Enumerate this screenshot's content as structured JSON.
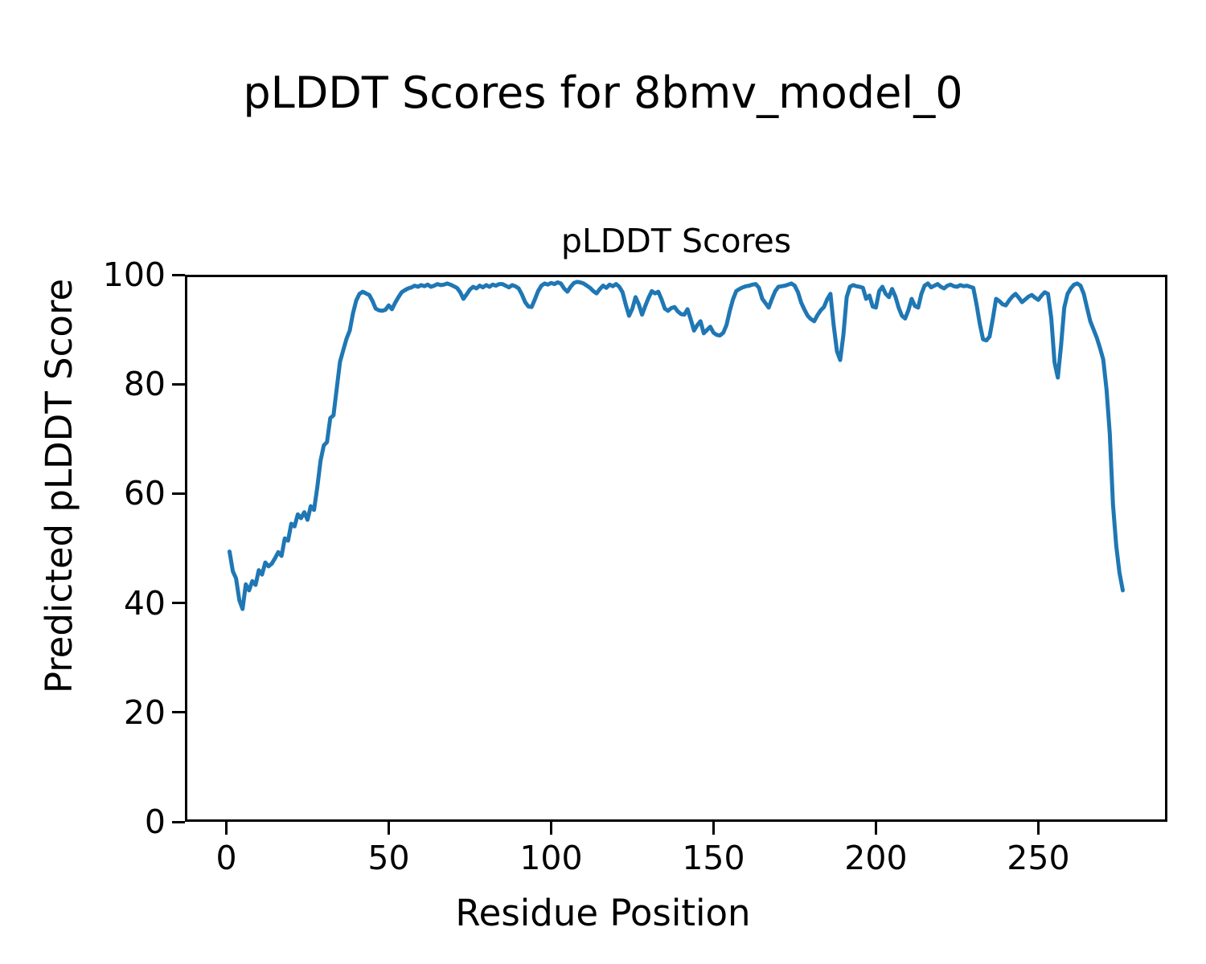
{
  "chart_data": {
    "type": "line",
    "figure_title": "pLDDT Scores for 8bmv_model_0",
    "axes_title": "pLDDT Scores",
    "xlabel": "Residue Position",
    "ylabel": "Predicted pLDDT Score",
    "legend": null,
    "grid": false,
    "line_color": "#1f77b4",
    "spine_color": "#000000",
    "background_color": "#ffffff",
    "xlim": [
      -12.75,
      289.75
    ],
    "ylim": [
      0,
      100
    ],
    "x_ticks": [
      0,
      50,
      100,
      150,
      200,
      250
    ],
    "y_ticks": [
      0,
      20,
      40,
      60,
      80,
      100
    ],
    "x_start": 1,
    "x_step": 1,
    "y": [
      49.4,
      45.8,
      44.5,
      40.5,
      38.9,
      43.4,
      42.3,
      44.0,
      43.3,
      46.0,
      45.2,
      47.4,
      46.7,
      47.2,
      48.2,
      49.3,
      48.6,
      51.8,
      51.4,
      54.5,
      54.0,
      56.2,
      55.5,
      56.6,
      55.2,
      57.7,
      57.0,
      61.1,
      66.0,
      68.8,
      69.4,
      73.8,
      74.3,
      79.3,
      84.1,
      86.2,
      88.3,
      89.8,
      93.0,
      95.3,
      96.5,
      96.9,
      96.6,
      96.3,
      95.2,
      93.8,
      93.5,
      93.4,
      93.6,
      94.4,
      93.7,
      94.9,
      95.9,
      96.8,
      97.2,
      97.5,
      97.7,
      98.0,
      97.8,
      98.1,
      97.9,
      98.2,
      97.8,
      98.0,
      98.3,
      98.1,
      98.2,
      98.4,
      98.2,
      97.9,
      97.6,
      96.8,
      95.6,
      96.4,
      97.3,
      97.8,
      97.5,
      98.0,
      97.7,
      98.1,
      97.8,
      98.2,
      98.0,
      98.3,
      98.3,
      98.0,
      97.7,
      98.1,
      97.9,
      97.5,
      96.4,
      95.0,
      94.2,
      94.1,
      95.5,
      97.0,
      98.0,
      98.4,
      98.2,
      98.5,
      98.3,
      98.6,
      98.4,
      97.5,
      96.9,
      97.8,
      98.5,
      98.7,
      98.6,
      98.4,
      98.0,
      97.6,
      97.0,
      96.6,
      97.4,
      98.0,
      97.6,
      98.2,
      97.9,
      98.3,
      97.8,
      96.8,
      94.5,
      92.5,
      93.8,
      95.9,
      94.6,
      92.7,
      94.3,
      95.8,
      97.0,
      96.6,
      96.9,
      95.5,
      93.8,
      93.4,
      93.9,
      94.1,
      93.3,
      92.8,
      92.7,
      93.7,
      91.8,
      89.8,
      90.8,
      91.5,
      89.3,
      89.9,
      90.5,
      89.4,
      89.0,
      88.9,
      89.4,
      90.8,
      93.4,
      95.5,
      97.0,
      97.4,
      97.7,
      97.9,
      98.0,
      98.2,
      98.3,
      97.6,
      95.6,
      94.8,
      94.0,
      95.6,
      97.0,
      97.8,
      97.9,
      98.0,
      98.2,
      98.4,
      98.0,
      96.8,
      94.9,
      93.6,
      92.5,
      91.9,
      91.5,
      92.6,
      93.5,
      94.1,
      95.5,
      96.5,
      90.8,
      86.0,
      84.4,
      89.0,
      95.9,
      97.8,
      98.1,
      97.9,
      97.8,
      97.6,
      95.6,
      96.2,
      94.2,
      94.0,
      97.0,
      97.8,
      96.5,
      95.9,
      97.4,
      96.0,
      94.0,
      92.5,
      92.0,
      93.5,
      95.6,
      94.3,
      94.0,
      96.5,
      98.0,
      98.4,
      97.7,
      98.0,
      98.3,
      97.8,
      97.5,
      98.0,
      98.2,
      97.9,
      97.8,
      98.1,
      97.9,
      98.0,
      97.8,
      97.6,
      94.5,
      91.0,
      88.2,
      88.0,
      88.7,
      92.0,
      95.6,
      95.2,
      94.6,
      94.4,
      95.3,
      96.0,
      96.5,
      95.8,
      95.0,
      95.5,
      96.0,
      96.3,
      95.8,
      95.4,
      96.2,
      96.8,
      96.5,
      92.0,
      84.0,
      81.2,
      87.0,
      94.0,
      96.5,
      97.5,
      98.2,
      98.4,
      98.0,
      96.5,
      94.0,
      91.5,
      90.0,
      88.5,
      86.6,
      84.5,
      79.0,
      71.0,
      58.0,
      50.4,
      45.5,
      42.3
    ]
  }
}
